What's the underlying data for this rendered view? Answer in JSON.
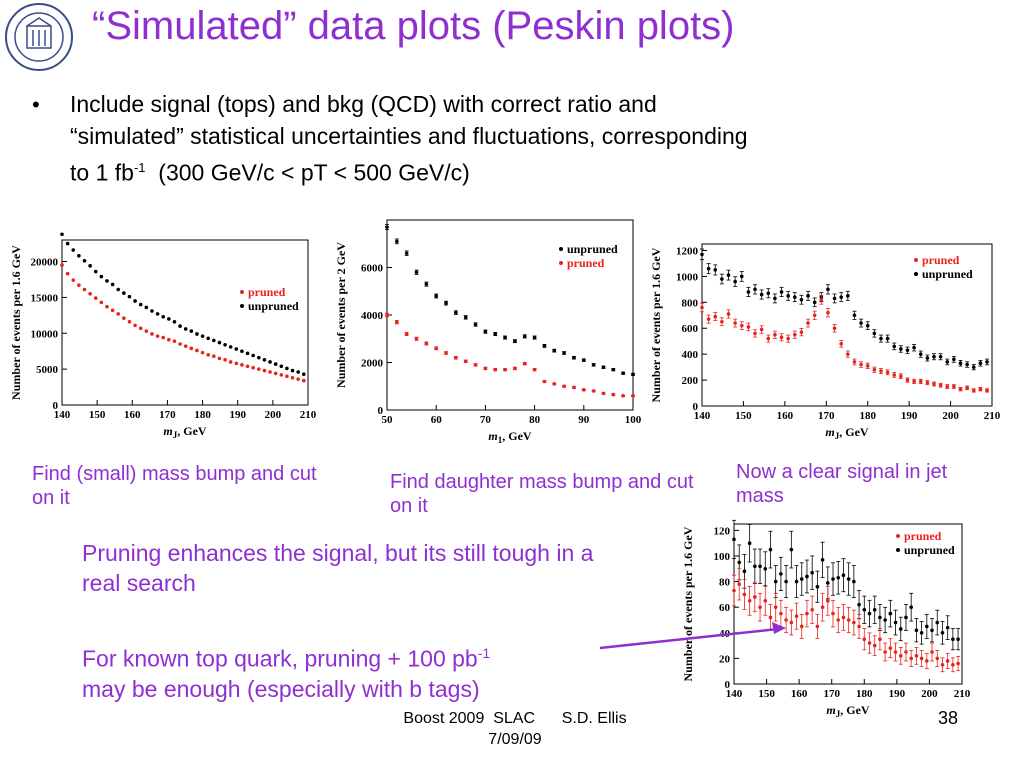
{
  "slide": {
    "title": "“Simulated” data plots (Peskin plots)",
    "bullet_line1": "Include signal (tops) and bkg (QCD) with correct ratio and",
    "bullet_line2": "“simulated” statistical uncertainties and fluctuations, corresponding",
    "bullet_line3a": "to 1 fb",
    "bullet_line3_sup": "-1",
    "bullet_line3b": "  (300 GeV/c < pT < 500 GeV/c)",
    "caption1": "Find (small) mass bump and cut on it",
    "caption2": "Find daughter mass bump and cut on it",
    "caption3": "Now a clear signal in jet mass",
    "note1": "Pruning enhances the signal, but its still tough in a real search",
    "note2a": "For known top quark, pruning + 100 pb",
    "note2_sup": "-1",
    "note2b": "may be enough (especially with b tags)",
    "footer_line1": "Boost 2009  SLAC      S.D. Ellis",
    "footer_line2": "7/09/09",
    "page_number": "38",
    "colors": {
      "title": "#8f2fd0",
      "pruned": "#e8231d",
      "unpruned": "#000000",
      "arrow": "#8f2fd0"
    },
    "logo_icon": "university-seal-icon"
  },
  "chart_data": [
    {
      "type": "scatter",
      "ylabel": "Number of events per 1.6 GeV",
      "xlabel_main": "m",
      "xlabel_sub": "J",
      "xlabel_unit": ", GeV",
      "xlim": [
        140,
        210
      ],
      "ylim": [
        0,
        23000
      ],
      "xticks": [
        140,
        150,
        160,
        170,
        180,
        190,
        200,
        210
      ],
      "yticks": [
        0,
        5000,
        10000,
        15000,
        20000
      ],
      "legend": [
        "pruned",
        "unpruned"
      ],
      "series": [
        {
          "name": "unpruned",
          "x": [
            140,
            141.6,
            143.2,
            144.8,
            146.4,
            148,
            149.6,
            151.2,
            152.8,
            154.4,
            156,
            157.6,
            159.2,
            160.8,
            162.4,
            164,
            165.6,
            167.2,
            168.8,
            170.4,
            172,
            173.6,
            175.2,
            176.8,
            178.4,
            180,
            181.6,
            183.2,
            184.8,
            186.4,
            188,
            189.6,
            191.2,
            192.8,
            194.4,
            196,
            197.6,
            199.2,
            200.8,
            202.4,
            204,
            205.6,
            207.2,
            208.8
          ],
          "y": [
            23800,
            22500,
            21600,
            20800,
            20100,
            19400,
            18600,
            17900,
            17300,
            16800,
            16100,
            15600,
            15100,
            14500,
            14000,
            13600,
            13100,
            12700,
            12300,
            12000,
            11600,
            11000,
            10600,
            10300,
            9900,
            9600,
            9300,
            9000,
            8700,
            8400,
            8100,
            7800,
            7500,
            7200,
            6900,
            6600,
            6300,
            6000,
            5700,
            5400,
            5100,
            4800,
            4600,
            4300
          ]
        },
        {
          "name": "pruned",
          "x": [
            140,
            141.6,
            143.2,
            144.8,
            146.4,
            148,
            149.6,
            151.2,
            152.8,
            154.4,
            156,
            157.6,
            159.2,
            160.8,
            162.4,
            164,
            165.6,
            167.2,
            168.8,
            170.4,
            172,
            173.6,
            175.2,
            176.8,
            178.4,
            180,
            181.6,
            183.2,
            184.8,
            186.4,
            188,
            189.6,
            191.2,
            192.8,
            194.4,
            196,
            197.6,
            199.2,
            200.8,
            202.4,
            204,
            205.6,
            207.2,
            208.8
          ],
          "y": [
            19500,
            18300,
            17400,
            16700,
            16100,
            15500,
            14900,
            14300,
            13700,
            13200,
            12700,
            12100,
            11600,
            11100,
            10700,
            10300,
            9900,
            9600,
            9400,
            9100,
            8900,
            8500,
            8200,
            7900,
            7600,
            7300,
            7000,
            6800,
            6500,
            6300,
            6000,
            5800,
            5600,
            5400,
            5200,
            5000,
            4800,
            4600,
            4400,
            4200,
            4000,
            3800,
            3600,
            3400
          ]
        }
      ]
    },
    {
      "type": "scatter",
      "ylabel": "Number of events per 2 GeV",
      "xlabel_main": "m",
      "xlabel_sub": "1",
      "xlabel_unit": ", GeV",
      "xlim": [
        50,
        100
      ],
      "ylim": [
        0,
        8000
      ],
      "xticks": [
        50,
        60,
        70,
        80,
        90,
        100
      ],
      "yticks": [
        0,
        2000,
        4000,
        6000
      ],
      "legend": [
        "unpruned",
        "pruned"
      ],
      "series": [
        {
          "name": "unpruned",
          "x": [
            50,
            52,
            54,
            56,
            58,
            60,
            62,
            64,
            66,
            68,
            70,
            72,
            74,
            76,
            78,
            80,
            82,
            84,
            86,
            88,
            90,
            92,
            94,
            96,
            98,
            100
          ],
          "y": [
            7700,
            7100,
            6600,
            5800,
            5300,
            4800,
            4500,
            4100,
            3900,
            3600,
            3300,
            3200,
            3050,
            2900,
            3100,
            3050,
            2700,
            2500,
            2400,
            2200,
            2100,
            1900,
            1800,
            1700,
            1550,
            1500
          ]
        },
        {
          "name": "pruned",
          "x": [
            50,
            52,
            54,
            56,
            58,
            60,
            62,
            64,
            66,
            68,
            70,
            72,
            74,
            76,
            78,
            80,
            82,
            84,
            86,
            88,
            90,
            92,
            94,
            96,
            98,
            100
          ],
          "y": [
            4000,
            3700,
            3200,
            3000,
            2800,
            2600,
            2400,
            2200,
            2050,
            1900,
            1750,
            1700,
            1700,
            1750,
            1950,
            1700,
            1200,
            1100,
            1000,
            950,
            850,
            800,
            700,
            650,
            600,
            600
          ]
        }
      ]
    },
    {
      "type": "scatter",
      "ylabel": "Number of events per 1.6 GeV",
      "xlabel_main": "m",
      "xlabel_sub": "J",
      "xlabel_unit": ", GeV",
      "xlim": [
        140,
        210
      ],
      "ylim": [
        0,
        1250
      ],
      "xticks": [
        140,
        150,
        160,
        170,
        180,
        190,
        200,
        210
      ],
      "yticks": [
        0,
        200,
        400,
        600,
        800,
        1000,
        1200
      ],
      "legend": [
        "pruned",
        "unpruned"
      ],
      "series": [
        {
          "name": "unpruned",
          "x": [
            140,
            141.6,
            143.2,
            144.8,
            146.4,
            148,
            149.6,
            151.2,
            152.8,
            154.4,
            156,
            157.6,
            159.2,
            160.8,
            162.4,
            164,
            165.6,
            167.2,
            168.8,
            170.4,
            172,
            173.6,
            175.2,
            176.8,
            178.4,
            180,
            181.6,
            183.2,
            184.8,
            186.4,
            188,
            189.6,
            191.2,
            192.8,
            194.4,
            196,
            197.6,
            199.2,
            200.8,
            202.4,
            204,
            205.6,
            207.2,
            208.8
          ],
          "y": [
            1170,
            1060,
            1050,
            980,
            1010,
            960,
            1000,
            880,
            900,
            860,
            870,
            830,
            880,
            850,
            840,
            820,
            850,
            800,
            840,
            900,
            830,
            840,
            850,
            700,
            640,
            620,
            560,
            520,
            520,
            460,
            440,
            430,
            450,
            400,
            370,
            380,
            380,
            340,
            360,
            330,
            320,
            300,
            330,
            340
          ]
        },
        {
          "name": "pruned",
          "x": [
            140,
            141.6,
            143.2,
            144.8,
            146.4,
            148,
            149.6,
            151.2,
            152.8,
            154.4,
            156,
            157.6,
            159.2,
            160.8,
            162.4,
            164,
            165.6,
            167.2,
            168.8,
            170.4,
            172,
            173.6,
            175.2,
            176.8,
            178.4,
            180,
            181.6,
            183.2,
            184.8,
            186.4,
            188,
            189.6,
            191.2,
            192.8,
            194.4,
            196,
            197.6,
            199.2,
            200.8,
            202.4,
            204,
            205.6,
            207.2,
            208.8
          ],
          "y": [
            760,
            670,
            690,
            650,
            710,
            640,
            620,
            610,
            560,
            590,
            520,
            550,
            530,
            520,
            550,
            570,
            640,
            700,
            820,
            720,
            600,
            480,
            400,
            340,
            320,
            310,
            280,
            270,
            260,
            240,
            230,
            200,
            190,
            190,
            180,
            170,
            160,
            150,
            150,
            130,
            140,
            120,
            130,
            120
          ]
        }
      ]
    },
    {
      "type": "scatter",
      "ylabel": "Number of events per 1.6 GeV",
      "xlabel_main": "m",
      "xlabel_sub": "J",
      "xlabel_unit": ", GeV",
      "xlim": [
        140,
        210
      ],
      "ylim": [
        0,
        125
      ],
      "xticks": [
        140,
        150,
        160,
        170,
        180,
        190,
        200,
        210
      ],
      "yticks": [
        0,
        20,
        40,
        60,
        80,
        100,
        120
      ],
      "legend": [
        "pruned",
        "unpruned"
      ],
      "series": [
        {
          "name": "unpruned",
          "x": [
            140,
            141.6,
            143.2,
            144.8,
            146.4,
            148,
            149.6,
            151.2,
            152.8,
            154.4,
            156,
            157.6,
            159.2,
            160.8,
            162.4,
            164,
            165.6,
            167.2,
            168.8,
            170.4,
            172,
            173.6,
            175.2,
            176.8,
            178.4,
            180,
            181.6,
            183.2,
            184.8,
            186.4,
            188,
            189.6,
            191.2,
            192.8,
            194.4,
            196,
            197.6,
            199.2,
            200.8,
            202.4,
            204,
            205.6,
            207.2,
            208.8
          ],
          "y": [
            113,
            95,
            88,
            110,
            92,
            92,
            90,
            105,
            80,
            86,
            80,
            105,
            80,
            82,
            84,
            87,
            76,
            97,
            79,
            82,
            83,
            85,
            82,
            80,
            62,
            58,
            55,
            58,
            52,
            50,
            55,
            48,
            43,
            52,
            60,
            42,
            40,
            45,
            42,
            48,
            40,
            44,
            35,
            35
          ]
        },
        {
          "name": "pruned",
          "x": [
            140,
            141.6,
            143.2,
            144.8,
            146.4,
            148,
            149.6,
            151.2,
            152.8,
            154.4,
            156,
            157.6,
            159.2,
            160.8,
            162.4,
            164,
            165.6,
            167.2,
            168.8,
            170.4,
            172,
            173.6,
            175.2,
            176.8,
            178.4,
            180,
            181.6,
            183.2,
            184.8,
            186.4,
            188,
            189.6,
            191.2,
            192.8,
            194.4,
            196,
            197.6,
            199.2,
            200.8,
            202.4,
            204,
            205.6,
            207.2,
            208.8
          ],
          "y": [
            73,
            78,
            70,
            65,
            68,
            60,
            65,
            52,
            60,
            55,
            50,
            48,
            53,
            45,
            55,
            58,
            45,
            60,
            65,
            55,
            50,
            52,
            50,
            48,
            45,
            35,
            32,
            30,
            35,
            25,
            28,
            25,
            22,
            25,
            20,
            22,
            20,
            18,
            25,
            20,
            15,
            18,
            15,
            16
          ]
        }
      ]
    }
  ]
}
